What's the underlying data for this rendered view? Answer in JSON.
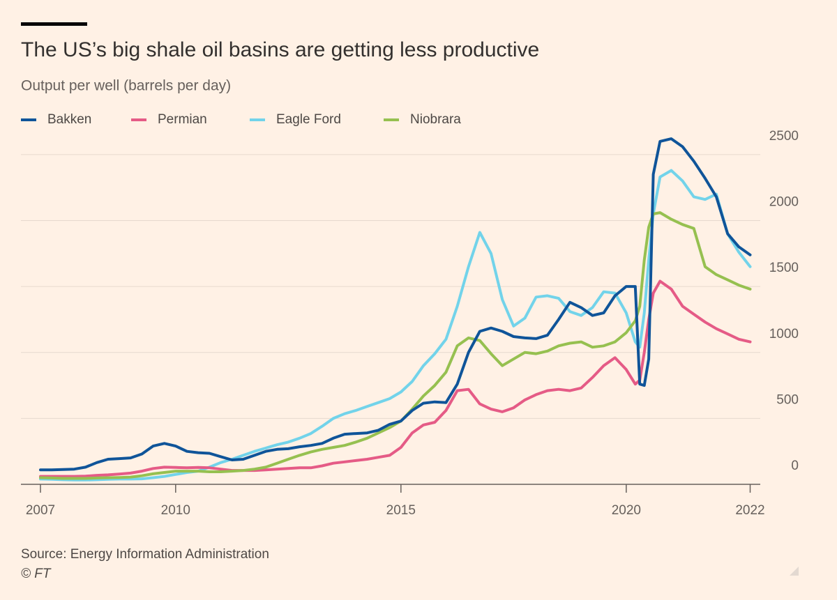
{
  "chart_data": {
    "type": "line",
    "title": "The US’s big shale oil basins are getting less productive",
    "subtitle": "Output per well (barrels per day)",
    "source": "Source: Energy Information Administration",
    "credit": "© FT",
    "x": [
      2007,
      2007.25,
      2007.5,
      2007.75,
      2008,
      2008.25,
      2008.5,
      2008.75,
      2009,
      2009.25,
      2009.5,
      2009.75,
      2010,
      2010.25,
      2010.5,
      2010.75,
      2011,
      2011.25,
      2011.5,
      2011.75,
      2012,
      2012.25,
      2012.5,
      2012.75,
      2013,
      2013.25,
      2013.5,
      2013.75,
      2014,
      2014.25,
      2014.5,
      2014.75,
      2015,
      2015.25,
      2015.5,
      2015.75,
      2016,
      2016.25,
      2016.5,
      2016.75,
      2017,
      2017.25,
      2017.5,
      2017.75,
      2018,
      2018.25,
      2018.5,
      2018.75,
      2019,
      2019.25,
      2019.5,
      2019.75,
      2020,
      2020.2,
      2020.3,
      2020.4,
      2020.5,
      2020.6,
      2020.75,
      2021,
      2021.25,
      2021.5,
      2021.75,
      2022,
      2022.25,
      2022.5,
      2022.75
    ],
    "series": [
      {
        "name": "Bakken",
        "color": "#0f5499",
        "values": [
          110,
          110,
          112,
          115,
          130,
          165,
          190,
          195,
          200,
          230,
          290,
          310,
          290,
          250,
          240,
          235,
          210,
          185,
          190,
          220,
          250,
          265,
          270,
          285,
          295,
          310,
          350,
          380,
          385,
          390,
          410,
          455,
          480,
          560,
          615,
          625,
          620,
          760,
          1000,
          1160,
          1185,
          1160,
          1120,
          1110,
          1105,
          1130,
          1250,
          1380,
          1340,
          1280,
          1300,
          1430,
          1500,
          1500,
          760,
          750,
          950,
          2350,
          2600,
          2620,
          2560,
          2450,
          2320,
          2180,
          1900,
          1800,
          1740
        ]
      },
      {
        "name": "Permian",
        "color": "#e55b86",
        "values": [
          60,
          60,
          60,
          60,
          62,
          68,
          72,
          78,
          85,
          100,
          120,
          130,
          128,
          125,
          128,
          125,
          115,
          105,
          105,
          105,
          110,
          115,
          120,
          125,
          125,
          140,
          160,
          170,
          180,
          190,
          205,
          220,
          280,
          390,
          450,
          470,
          560,
          710,
          720,
          610,
          570,
          550,
          580,
          640,
          680,
          710,
          720,
          710,
          730,
          810,
          900,
          960,
          870,
          760,
          790,
          1000,
          1250,
          1450,
          1540,
          1480,
          1350,
          1290,
          1230,
          1180,
          1140,
          1100,
          1080
        ]
      },
      {
        "name": "Eagle Ford",
        "color": "#72d3ea",
        "values": [
          40,
          38,
          35,
          33,
          33,
          35,
          38,
          40,
          40,
          42,
          50,
          60,
          75,
          90,
          100,
          130,
          165,
          190,
          220,
          250,
          275,
          300,
          320,
          350,
          385,
          440,
          500,
          535,
          560,
          590,
          620,
          650,
          700,
          780,
          900,
          990,
          1100,
          1350,
          1650,
          1910,
          1750,
          1400,
          1200,
          1260,
          1420,
          1430,
          1410,
          1310,
          1280,
          1340,
          1460,
          1450,
          1300,
          1080,
          1040,
          1300,
          1700,
          2050,
          2330,
          2380,
          2300,
          2180,
          2160,
          2200,
          1900,
          1760,
          1650
        ]
      },
      {
        "name": "Niobrara",
        "color": "#96c050",
        "values": [
          50,
          48,
          45,
          45,
          45,
          48,
          50,
          52,
          55,
          65,
          80,
          90,
          100,
          100,
          100,
          95,
          95,
          100,
          105,
          115,
          130,
          160,
          190,
          220,
          245,
          265,
          280,
          295,
          320,
          350,
          390,
          430,
          480,
          570,
          670,
          750,
          850,
          1050,
          1110,
          1090,
          990,
          900,
          950,
          1000,
          990,
          1010,
          1050,
          1070,
          1080,
          1040,
          1050,
          1080,
          1150,
          1240,
          1350,
          1700,
          1950,
          2050,
          2060,
          2010,
          1970,
          1940,
          1650,
          1590,
          1550,
          1510,
          1480
        ]
      }
    ],
    "xlim": [
      2007,
      2022.75
    ],
    "xticks": [
      2007,
      2010,
      2015,
      2020,
      {
        "value": 2022.75,
        "label": "2022"
      }
    ],
    "ylim": [
      0,
      2700
    ],
    "yticks": [
      0,
      500,
      1000,
      1500,
      2000,
      2500
    ],
    "y_axis_side": "right",
    "grid": true
  }
}
